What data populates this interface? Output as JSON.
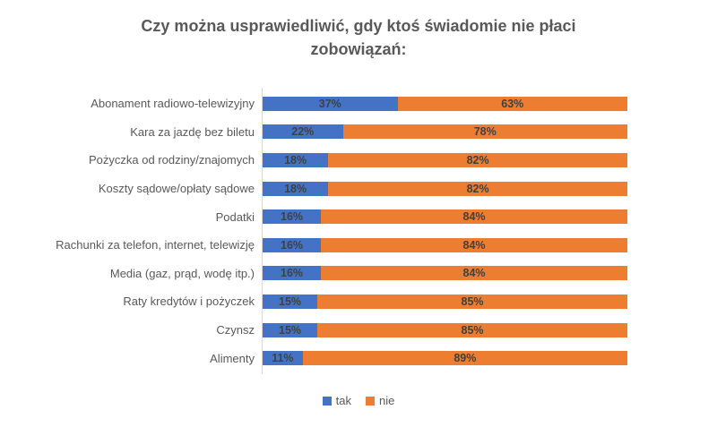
{
  "title": "Czy można usprawiedliwić, gdy ktoś świadomie nie płaci zobowiązań:",
  "colors": {
    "tak": "#4472C4",
    "nie": "#ED7D31",
    "title_text": "#595959",
    "category_text": "#595959",
    "data_label_text": "#404040",
    "axis_line": "#D9D9D9",
    "background": "#FFFFFF"
  },
  "chart_data": {
    "type": "bar",
    "orientation": "horizontal",
    "stacked": true,
    "title": "Czy można usprawiedliwić, gdy ktoś świadomie nie płaci zobowiązań:",
    "categories": [
      "Abonament radiowo-telewizyjny",
      "Kara za jazdę bez biletu",
      "Pożyczka od rodziny/znajomych",
      "Koszty sądowe/opłaty sądowe",
      "Podatki",
      "Rachunki za telefon, internet, telewizję",
      "Media (gaz, prąd, wodę itp.)",
      "Raty kredytów i pożyczek",
      "Czynsz",
      "Alimenty"
    ],
    "series": [
      {
        "name": "tak",
        "color": "#4472C4",
        "values": [
          37,
          22,
          18,
          18,
          16,
          16,
          16,
          15,
          15,
          11
        ]
      },
      {
        "name": "nie",
        "color": "#ED7D31",
        "values": [
          63,
          78,
          82,
          82,
          84,
          84,
          84,
          85,
          85,
          89
        ]
      }
    ],
    "value_suffix": "%",
    "xlim": [
      0,
      100
    ],
    "grid": false,
    "legend_position": "bottom",
    "data_labels": true
  }
}
